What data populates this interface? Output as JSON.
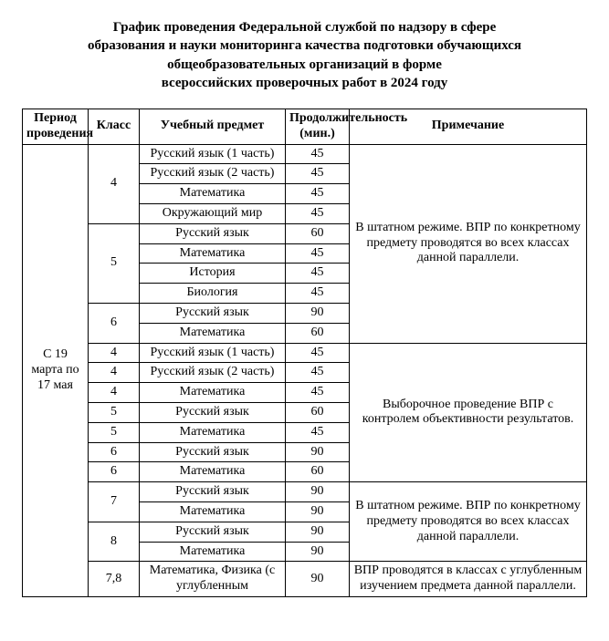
{
  "title_lines": [
    "График проведения Федеральной службой по надзору в сфере",
    "образования и науки мониторинга качества подготовки обучающихся",
    "общеобразовательных организаций в форме",
    "всероссийских проверочных работ в 2024 году"
  ],
  "headers": {
    "period": "Период проведения",
    "class": "Класс",
    "subject": "Учебный предмет",
    "duration": "Продолжительность (мин.)",
    "note": "Примечание"
  },
  "period_label": "С 19 марта по 17 мая",
  "notes": {
    "n1": "В штатном режиме. ВПР по конкретному предмету проводятся во всех классах данной параллели.",
    "n2": "Выборочное проведение ВПР с контролем объективности результатов.",
    "n3": "В штатном режиме. ВПР по конкретному предмету проводятся во всех классах данной параллели.",
    "n4": "ВПР проводятся в классах с углубленным изучением предмета данной параллели."
  },
  "groups": {
    "g1": {
      "class": "4",
      "rows": [
        {
          "subject": "Русский язык (1 часть)",
          "duration": "45"
        },
        {
          "subject": "Русский язык (2 часть)",
          "duration": "45"
        },
        {
          "subject": "Математика",
          "duration": "45"
        },
        {
          "subject": "Окружающий мир",
          "duration": "45"
        }
      ]
    },
    "g2": {
      "class": "5",
      "rows": [
        {
          "subject": "Русский язык",
          "duration": "60"
        },
        {
          "subject": "Математика",
          "duration": "45"
        },
        {
          "subject": "История",
          "duration": "45"
        },
        {
          "subject": "Биология",
          "duration": "45"
        }
      ]
    },
    "g3": {
      "class": "6",
      "rows": [
        {
          "subject": "Русский язык",
          "duration": "90"
        },
        {
          "subject": "Математика",
          "duration": "60"
        }
      ]
    },
    "g4": {
      "class": "4",
      "rows": [
        {
          "subject": "Русский язык (1 часть)",
          "duration": "45"
        }
      ]
    },
    "g5": {
      "class": "4",
      "rows": [
        {
          "subject": "Русский язык (2 часть)",
          "duration": "45"
        }
      ]
    },
    "g6": {
      "class": "4",
      "rows": [
        {
          "subject": "Математика",
          "duration": "45"
        }
      ]
    },
    "g7": {
      "class": "5",
      "rows": [
        {
          "subject": "Русский язык",
          "duration": "60"
        }
      ]
    },
    "g8": {
      "class": "5",
      "rows": [
        {
          "subject": "Математика",
          "duration": "45"
        }
      ]
    },
    "g9": {
      "class": "6",
      "rows": [
        {
          "subject": "Русский язык",
          "duration": "90"
        }
      ]
    },
    "g10": {
      "class": "6",
      "rows": [
        {
          "subject": "Математика",
          "duration": "60"
        }
      ]
    },
    "g11": {
      "class": "7",
      "rows": [
        {
          "subject": "Русский язык",
          "duration": "90"
        },
        {
          "subject": "Математика",
          "duration": "90"
        }
      ]
    },
    "g12": {
      "class": "8",
      "rows": [
        {
          "subject": "Русский язык",
          "duration": "90"
        },
        {
          "subject": "Математика",
          "duration": "90"
        }
      ]
    },
    "g13": {
      "class": "7,8",
      "rows": [
        {
          "subject": "Математика, Физика (с углубленным",
          "duration": "90"
        }
      ]
    }
  }
}
